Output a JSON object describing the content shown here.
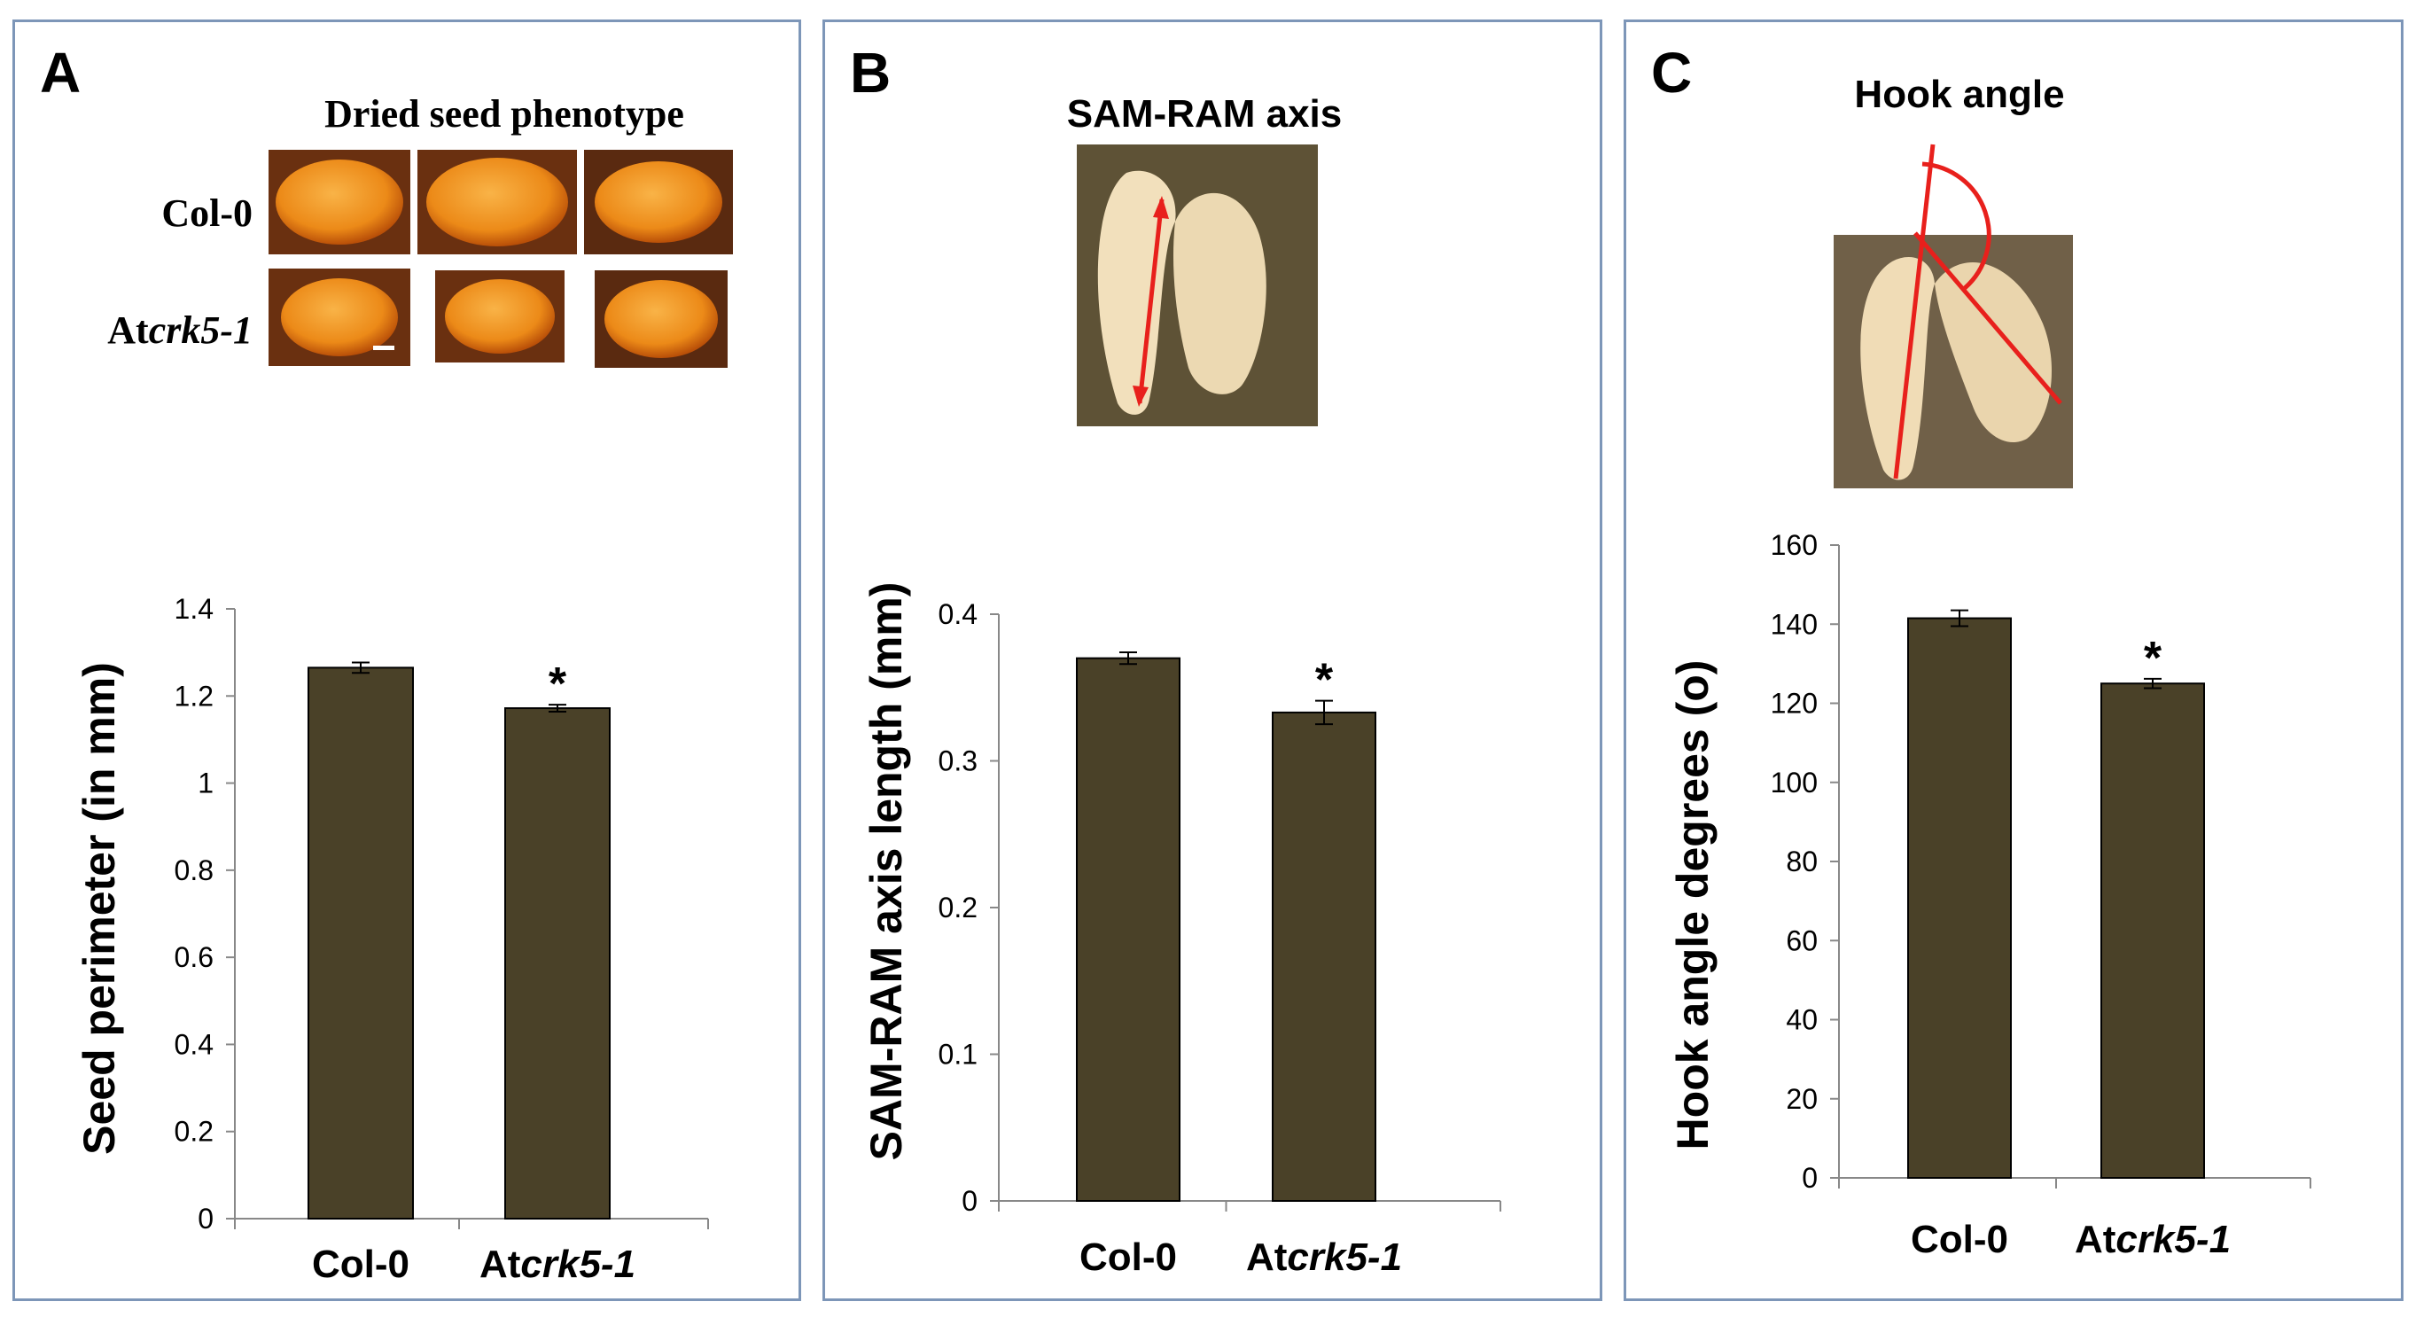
{
  "colors": {
    "bar": "#4a4128",
    "border": "#7d96b8",
    "arrow": "#e8201c",
    "seed_dark": "#c55a0a",
    "seed_light": "#f6a23a",
    "photo_bg_a": "#5a2c10",
    "embryo_bg": "#6a5a3a",
    "embryo": "#f3e2bf"
  },
  "panels": {
    "a": {
      "letter": "A",
      "image_title": "Dried seed phenotype",
      "row_labels": [
        "Col-0",
        "Atcrk5-1"
      ],
      "row_label_parts": [
        {
          "plain": "Col-0",
          "italic": ""
        },
        {
          "plain": "At",
          "italic": "crk5-1"
        }
      ]
    },
    "b": {
      "letter": "B",
      "image_title": "SAM-RAM axis"
    },
    "c": {
      "letter": "C",
      "image_title": "Hook angle"
    }
  },
  "chart_data": [
    {
      "type": "bar",
      "title": "",
      "categories": [
        "Col-0",
        "Atcrk5-1"
      ],
      "category_parts": [
        {
          "plain": "Col-0",
          "italic": ""
        },
        {
          "plain": "At",
          "italic": "crk5-1"
        }
      ],
      "values": [
        1.265,
        1.172
      ],
      "errors": [
        0.012,
        0.008
      ],
      "significance": [
        "",
        "*"
      ],
      "ylabel": "Seed perimeter (in mm)",
      "xlabel": "",
      "ylim": [
        0,
        1.4
      ],
      "yticks": [
        0,
        0.2,
        0.4,
        0.6,
        0.8,
        1,
        1.2,
        1.4
      ],
      "ytick_labels": [
        "0",
        "0.2",
        "0.4",
        "0.6",
        "0.8",
        "1",
        "1.2",
        "1.4"
      ]
    },
    {
      "type": "bar",
      "title": "",
      "categories": [
        "Col-0",
        "Atcrk5-1"
      ],
      "category_parts": [
        {
          "plain": "Col-0",
          "italic": ""
        },
        {
          "plain": "At",
          "italic": "crk5-1"
        }
      ],
      "values": [
        0.37,
        0.333
      ],
      "errors": [
        0.004,
        0.008
      ],
      "significance": [
        "",
        "*"
      ],
      "ylabel": "SAM-RAM axis length (mm)",
      "xlabel": "",
      "ylim": [
        0,
        0.4
      ],
      "yticks": [
        0,
        0.1,
        0.2,
        0.3,
        0.4
      ],
      "ytick_labels": [
        "0",
        "0.1",
        "0.2",
        "0.3",
        "0.4"
      ]
    },
    {
      "type": "bar",
      "title": "",
      "categories": [
        "Col-0",
        "Atcrk5-1"
      ],
      "category_parts": [
        {
          "plain": "Col-0",
          "italic": ""
        },
        {
          "plain": "At",
          "italic": "crk5-1"
        }
      ],
      "values": [
        141.5,
        125
      ],
      "errors": [
        2,
        1.2
      ],
      "significance": [
        "",
        "*"
      ],
      "ylabel": "Hook angle degrees (o)",
      "xlabel": "",
      "ylim": [
        0,
        160
      ],
      "yticks": [
        0,
        20,
        40,
        60,
        80,
        100,
        120,
        140,
        160
      ],
      "ytick_labels": [
        "0",
        "20",
        "40",
        "60",
        "80",
        "100",
        "120",
        "140",
        "160"
      ]
    }
  ]
}
